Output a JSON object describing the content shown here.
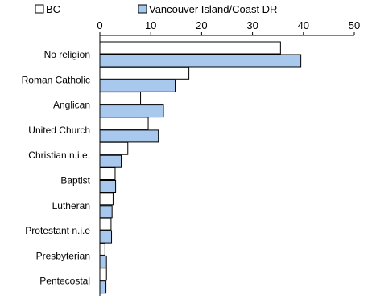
{
  "chart_data": {
    "type": "bar",
    "orientation": "horizontal",
    "categories": [
      "No religion",
      "Roman Catholic",
      "Anglican",
      "United Church",
      "Christian n.i.e.",
      "Baptist",
      "Lutheran",
      "Protestant n.i.e",
      "Presbyterian",
      "Pentecostal"
    ],
    "series": [
      {
        "name": "BC",
        "values": [
          35.5,
          17.5,
          8.0,
          9.5,
          5.5,
          3.0,
          2.6,
          2.2,
          1.0,
          1.3
        ],
        "color": "#ffffff"
      },
      {
        "name": "Vancouver Island/Coast DR",
        "values": [
          39.5,
          14.8,
          12.5,
          11.5,
          4.2,
          3.1,
          2.4,
          2.3,
          1.3,
          1.2
        ],
        "color": "#a9c8ee"
      }
    ],
    "xlim": [
      0,
      50
    ],
    "xticks": [
      "0",
      "10",
      "20",
      "30",
      "40",
      "50"
    ],
    "axis_position": "top",
    "legend_position": "top",
    "grid": false
  }
}
